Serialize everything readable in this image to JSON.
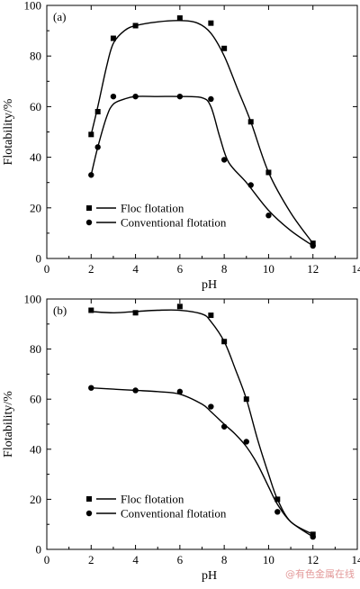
{
  "chart_data": [
    {
      "type": "line",
      "panel_label": "(a)",
      "xlabel": "pH",
      "ylabel": "Flotability/%",
      "xlim": [
        0,
        14
      ],
      "ylim": [
        0,
        100
      ],
      "xticks": [
        0,
        2,
        4,
        6,
        8,
        10,
        12,
        14
      ],
      "yticks": [
        0,
        20,
        40,
        60,
        80,
        100
      ],
      "legend_position": "bottom-left",
      "series": [
        {
          "name": "Floc flotation",
          "marker": "square",
          "x": [
            2.0,
            2.3,
            3.0,
            4.0,
            6.0,
            7.4,
            8.0,
            9.2,
            10.0,
            12.0
          ],
          "y": [
            49,
            58,
            87,
            92,
            95,
            93,
            83,
            54,
            34,
            6
          ],
          "curve_x": [
            2.0,
            2.3,
            2.7,
            3.0,
            3.5,
            4.0,
            5.0,
            6.0,
            6.8,
            7.4,
            8.0,
            8.6,
            9.2,
            10.0,
            11.0,
            12.0
          ],
          "curve_y": [
            49,
            60,
            76,
            85,
            90,
            92,
            93.5,
            94,
            93,
            89,
            80,
            67,
            54,
            34,
            18,
            6
          ]
        },
        {
          "name": "Conventional flotation",
          "marker": "circle",
          "x": [
            2.0,
            2.3,
            3.0,
            4.0,
            6.0,
            7.4,
            8.0,
            9.2,
            10.0,
            12.0
          ],
          "y": [
            33,
            44,
            64,
            64,
            64,
            63,
            39,
            29,
            17,
            5
          ],
          "curve_x": [
            2.0,
            2.3,
            2.7,
            3.0,
            3.5,
            4.0,
            5.0,
            6.0,
            7.0,
            7.4,
            7.8,
            8.2,
            9.0,
            10.0,
            11.0,
            12.0
          ],
          "curve_y": [
            33,
            44,
            56,
            61,
            63,
            64,
            64,
            64,
            63.5,
            60,
            48,
            38,
            30,
            19,
            11,
            5
          ]
        }
      ]
    },
    {
      "type": "line",
      "panel_label": "(b)",
      "xlabel": "pH",
      "ylabel": "Flotability/%",
      "xlim": [
        0,
        14
      ],
      "ylim": [
        0,
        100
      ],
      "xticks": [
        0,
        2,
        4,
        6,
        8,
        10,
        12,
        14
      ],
      "yticks": [
        0,
        20,
        40,
        60,
        80,
        100
      ],
      "legend_position": "bottom-left",
      "series": [
        {
          "name": "Floc flotation",
          "marker": "square",
          "x": [
            2.0,
            4.0,
            6.0,
            7.4,
            8.0,
            9.0,
            10.4,
            12.0
          ],
          "y": [
            95.5,
            94.5,
            97,
            93.5,
            83,
            60,
            20,
            6
          ],
          "curve_x": [
            2.0,
            3.0,
            4.0,
            5.0,
            6.0,
            7.0,
            7.4,
            8.0,
            8.5,
            9.0,
            9.5,
            10.0,
            10.4,
            11.0,
            12.0
          ],
          "curve_y": [
            95,
            94.5,
            95,
            95.5,
            95.5,
            94,
            91,
            83,
            72,
            60,
            44,
            30,
            20,
            11,
            6
          ]
        },
        {
          "name": "Conventional flotation",
          "marker": "circle",
          "x": [
            2.0,
            4.0,
            6.0,
            7.4,
            8.0,
            9.0,
            10.4,
            12.0
          ],
          "y": [
            64.5,
            63.5,
            63,
            57,
            49,
            43,
            15,
            5
          ],
          "curve_x": [
            2.0,
            3.0,
            4.0,
            5.0,
            6.0,
            7.0,
            7.4,
            8.0,
            8.5,
            9.0,
            9.5,
            10.0,
            10.4,
            11.0,
            12.0
          ],
          "curve_y": [
            64.5,
            64,
            63.5,
            63,
            62,
            58,
            55,
            50,
            46,
            41,
            34,
            25,
            18,
            11,
            5
          ]
        }
      ]
    }
  ],
  "watermark": "@有色金属在线"
}
